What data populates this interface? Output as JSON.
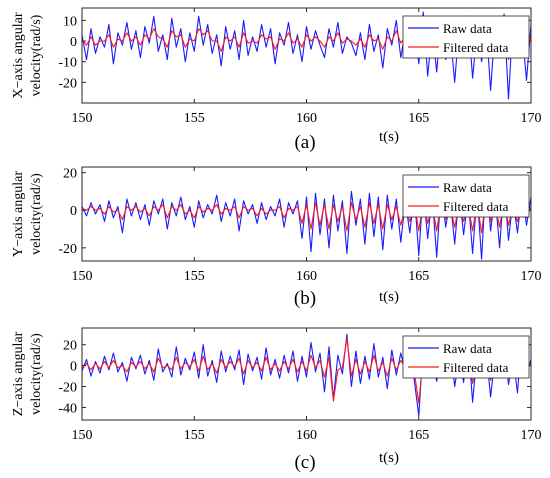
{
  "colors": {
    "raw": "#1a1aff",
    "filtered": "#ff1a1a"
  },
  "chart_data": [
    {
      "type": "line",
      "caption": "(a)",
      "xlabel": "t(s)",
      "ylabel_line1": "X−axis angular",
      "ylabel_line2": "velocity(rad/s)",
      "xlim": [
        150,
        170
      ],
      "ylim": [
        -30,
        16
      ],
      "xticks": [
        150,
        155,
        160,
        165,
        170
      ],
      "yticks": [
        10,
        0,
        -10,
        -20
      ],
      "legend_position": "top-right",
      "x": [
        150,
        150.2,
        150.4,
        150.6,
        150.8,
        151,
        151.2,
        151.4,
        151.6,
        151.8,
        152,
        152.2,
        152.4,
        152.6,
        152.8,
        153,
        153.2,
        153.4,
        153.6,
        153.8,
        154,
        154.2,
        154.4,
        154.6,
        154.8,
        155,
        155.2,
        155.4,
        155.6,
        155.8,
        156,
        156.2,
        156.4,
        156.6,
        156.8,
        157,
        157.2,
        157.4,
        157.6,
        157.8,
        158,
        158.2,
        158.4,
        158.6,
        158.8,
        159,
        159.2,
        159.4,
        159.6,
        159.8,
        160,
        160.2,
        160.4,
        160.6,
        160.8,
        161,
        161.2,
        161.4,
        161.6,
        161.8,
        162,
        162.2,
        162.4,
        162.6,
        162.8,
        163,
        163.2,
        163.4,
        163.6,
        163.8,
        164,
        164.2,
        164.4,
        164.6,
        164.8,
        165,
        165.2,
        165.4,
        165.6,
        165.8,
        166,
        166.2,
        166.4,
        166.6,
        166.8,
        167,
        167.2,
        167.4,
        167.6,
        167.8,
        168,
        168.2,
        168.4,
        168.6,
        168.8,
        169,
        169.2,
        169.4,
        169.6,
        169.8,
        170
      ],
      "series": [
        {
          "name": "Raw data",
          "color_key": "raw",
          "values": [
            3,
            -9,
            6,
            -6,
            2,
            -3,
            8,
            -11,
            4,
            -2,
            9,
            -4,
            5,
            -8,
            7,
            -1,
            12,
            -5,
            3,
            -9,
            11,
            -3,
            6,
            -10,
            4,
            -5,
            12,
            -2,
            8,
            -6,
            3,
            -12,
            7,
            -4,
            5,
            -9,
            10,
            -7,
            2,
            -5,
            8,
            -3,
            6,
            -11,
            4,
            -2,
            9,
            -6,
            3,
            -10,
            7,
            -4,
            5,
            -2,
            -8,
            6,
            -3,
            9,
            -6,
            2,
            -1,
            -7,
            4,
            -9,
            8,
            -5,
            3,
            -13,
            6,
            -2,
            10,
            -8,
            5,
            -4,
            7,
            -11,
            14,
            -17,
            6,
            -15,
            11,
            -9,
            4,
            -20,
            8,
            -6,
            12,
            -18,
            5,
            -10,
            9,
            -24,
            7,
            -3,
            13,
            -28,
            10,
            -5,
            6,
            -19,
            8
          ]
        },
        {
          "name": "Filtered data",
          "color_key": "filtered",
          "values": [
            1,
            -2,
            2,
            -2,
            0,
            0,
            3,
            -3,
            1,
            0,
            4,
            0,
            2,
            -2,
            3,
            1,
            6,
            2,
            1,
            -3,
            5,
            2,
            3,
            -3,
            1,
            0,
            6,
            3,
            5,
            0,
            0,
            -5,
            2,
            0,
            2,
            -3,
            4,
            -1,
            0,
            -1,
            3,
            1,
            2,
            -4,
            1,
            0,
            4,
            -1,
            1,
            -3,
            3,
            0,
            2,
            0,
            -3,
            2,
            0,
            4,
            -1,
            1,
            0,
            -2,
            1,
            -3,
            3,
            0,
            1,
            -4,
            2,
            0,
            5,
            -1,
            2,
            0,
            3,
            -3,
            7,
            -5,
            2,
            -6,
            5,
            -2,
            1,
            -7,
            3,
            -1,
            6,
            -6,
            2,
            -3,
            4,
            -8,
            3,
            0,
            6,
            -9,
            4,
            -1,
            2,
            -6,
            3
          ]
        }
      ]
    },
    {
      "type": "line",
      "caption": "(b)",
      "xlabel": "t(s)",
      "ylabel_line1": "Y−axis angular",
      "ylabel_line2": "velocity(rad/s)",
      "xlim": [
        150,
        170
      ],
      "ylim": [
        -27,
        23
      ],
      "xticks": [
        150,
        155,
        160,
        165,
        170
      ],
      "yticks": [
        20,
        0,
        -20
      ],
      "legend_position": "top-right",
      "x": [
        150,
        150.2,
        150.4,
        150.6,
        150.8,
        151,
        151.2,
        151.4,
        151.6,
        151.8,
        152,
        152.2,
        152.4,
        152.6,
        152.8,
        153,
        153.2,
        153.4,
        153.6,
        153.8,
        154,
        154.2,
        154.4,
        154.6,
        154.8,
        155,
        155.2,
        155.4,
        155.6,
        155.8,
        156,
        156.2,
        156.4,
        156.6,
        156.8,
        157,
        157.2,
        157.4,
        157.6,
        157.8,
        158,
        158.2,
        158.4,
        158.6,
        158.8,
        159,
        159.2,
        159.4,
        159.6,
        159.8,
        160,
        160.2,
        160.4,
        160.6,
        160.8,
        161,
        161.2,
        161.4,
        161.6,
        161.8,
        162,
        162.2,
        162.4,
        162.6,
        162.8,
        163,
        163.2,
        163.4,
        163.6,
        163.8,
        164,
        164.2,
        164.4,
        164.6,
        164.8,
        165,
        165.2,
        165.4,
        165.6,
        165.8,
        166,
        166.2,
        166.4,
        166.6,
        166.8,
        167,
        167.2,
        167.4,
        167.6,
        167.8,
        168,
        168.2,
        168.4,
        168.6,
        168.8,
        169,
        169.2,
        169.4,
        169.6,
        169.8,
        170
      ],
      "series": [
        {
          "name": "Raw data",
          "color_key": "raw",
          "values": [
            2,
            -3,
            4,
            -2,
            3,
            -6,
            5,
            -4,
            2,
            -12,
            6,
            -3,
            4,
            -5,
            3,
            -8,
            5,
            -2,
            6,
            -10,
            4,
            -3,
            7,
            -5,
            2,
            -9,
            5,
            -4,
            3,
            -2,
            8,
            -6,
            4,
            -3,
            6,
            -11,
            5,
            -2,
            3,
            -7,
            4,
            -5,
            2,
            -3,
            6,
            -9,
            4,
            -2,
            5,
            -15,
            7,
            -22,
            9,
            -13,
            6,
            -20,
            8,
            -11,
            5,
            -23,
            10,
            -8,
            6,
            -18,
            9,
            -14,
            7,
            -21,
            8,
            -10,
            6,
            -17,
            5,
            -12,
            9,
            -24,
            11,
            -15,
            8,
            -25,
            12,
            -9,
            6,
            -18,
            10,
            -13,
            7,
            -23,
            9,
            -26,
            18,
            -11,
            8,
            -20,
            14,
            -16,
            6,
            -12,
            10,
            -8,
            7
          ]
        },
        {
          "name": "Filtered data",
          "color_key": "filtered",
          "values": [
            1,
            0,
            2,
            0,
            1,
            -2,
            2,
            -1,
            0,
            -5,
            2,
            0,
            2,
            -1,
            1,
            -3,
            2,
            0,
            3,
            -4,
            2,
            0,
            3,
            -2,
            0,
            -4,
            2,
            -1,
            1,
            0,
            3,
            -2,
            1,
            0,
            2,
            -4,
            2,
            0,
            1,
            -3,
            1,
            -2,
            0,
            0,
            2,
            -4,
            1,
            0,
            2,
            -7,
            3,
            -10,
            4,
            -8,
            3,
            -10,
            3,
            -6,
            2,
            -11,
            4,
            -5,
            2,
            -9,
            4,
            -7,
            3,
            -10,
            3,
            -5,
            2,
            -8,
            2,
            -6,
            4,
            -11,
            5,
            -7,
            3,
            -11,
            5,
            -5,
            2,
            -9,
            4,
            -6,
            3,
            -11,
            4,
            -12,
            8,
            -6,
            3,
            -9,
            6,
            -8,
            2,
            -6,
            4,
            -4,
            2
          ]
        }
      ]
    },
    {
      "type": "line",
      "caption": "(c)",
      "xlabel": "t(s)",
      "ylabel_line1": "Z−axis angular",
      "ylabel_line2": "velocity(rad/s)",
      "xlim": [
        150,
        170
      ],
      "ylim": [
        -52,
        36
      ],
      "xticks": [
        150,
        155,
        160,
        165,
        170
      ],
      "yticks": [
        20,
        0,
        -20,
        -40
      ],
      "legend_position": "top-right",
      "x": [
        150,
        150.2,
        150.4,
        150.6,
        150.8,
        151,
        151.2,
        151.4,
        151.6,
        151.8,
        152,
        152.2,
        152.4,
        152.6,
        152.8,
        153,
        153.2,
        153.4,
        153.6,
        153.8,
        154,
        154.2,
        154.4,
        154.6,
        154.8,
        155,
        155.2,
        155.4,
        155.6,
        155.8,
        156,
        156.2,
        156.4,
        156.6,
        156.8,
        157,
        157.2,
        157.4,
        157.6,
        157.8,
        158,
        158.2,
        158.4,
        158.6,
        158.8,
        159,
        159.2,
        159.4,
        159.6,
        159.8,
        160,
        160.2,
        160.4,
        160.6,
        160.8,
        161,
        161.2,
        161.4,
        161.6,
        161.8,
        162,
        162.2,
        162.4,
        162.6,
        162.8,
        163,
        163.2,
        163.4,
        163.6,
        163.8,
        164,
        164.2,
        164.4,
        164.6,
        164.8,
        165,
        165.2,
        165.4,
        165.6,
        165.8,
        166,
        166.2,
        166.4,
        166.6,
        166.8,
        167,
        167.2,
        167.4,
        167.6,
        167.8,
        168,
        168.2,
        168.4,
        168.6,
        168.8,
        169,
        169.2,
        169.4,
        169.6,
        169.8,
        170
      ],
      "series": [
        {
          "name": "Raw data",
          "color_key": "raw",
          "values": [
            -5,
            6,
            -10,
            4,
            -7,
            9,
            -4,
            12,
            -6,
            3,
            -15,
            8,
            -3,
            10,
            -8,
            5,
            -14,
            16,
            -6,
            2,
            -11,
            18,
            -9,
            7,
            -4,
            13,
            -12,
            20,
            -10,
            5,
            -16,
            14,
            -6,
            9,
            -4,
            15,
            -18,
            11,
            -5,
            8,
            -13,
            17,
            -9,
            6,
            -12,
            10,
            -7,
            14,
            -15,
            9,
            -11,
            22,
            -6,
            12,
            -25,
            18,
            -32,
            10,
            -8,
            30,
            -20,
            14,
            -17,
            9,
            -13,
            21,
            -11,
            8,
            -22,
            15,
            -9,
            12,
            -6,
            10,
            -14,
            -48,
            20,
            -10,
            6,
            -15,
            9,
            -12,
            18,
            -20,
            8,
            -16,
            24,
            -35,
            12,
            -8,
            14,
            -30,
            10,
            -6,
            20,
            -18,
            8,
            -26,
            28,
            -9,
            6
          ]
        },
        {
          "name": "Filtered data",
          "color_key": "filtered",
          "values": [
            -2,
            2,
            -4,
            2,
            -3,
            4,
            -2,
            5,
            -2,
            0,
            -6,
            3,
            -1,
            4,
            -3,
            2,
            -6,
            7,
            -2,
            0,
            -4,
            8,
            -3,
            3,
            -1,
            6,
            -5,
            9,
            -4,
            2,
            -7,
            6,
            -2,
            4,
            -1,
            7,
            -8,
            5,
            -2,
            3,
            -5,
            8,
            -4,
            2,
            -5,
            4,
            -3,
            6,
            -6,
            4,
            -5,
            10,
            -2,
            5,
            -11,
            8,
            -34,
            -4,
            -2,
            26,
            -10,
            6,
            -8,
            4,
            -6,
            10,
            -5,
            3,
            -10,
            7,
            -4,
            5,
            -2,
            4,
            -6,
            -36,
            10,
            -5,
            2,
            -7,
            4,
            -5,
            9,
            -10,
            3,
            -7,
            12,
            -17,
            5,
            -3,
            6,
            -14,
            4,
            -2,
            10,
            -8,
            3,
            -12,
            14,
            -4,
            2
          ]
        }
      ]
    }
  ]
}
